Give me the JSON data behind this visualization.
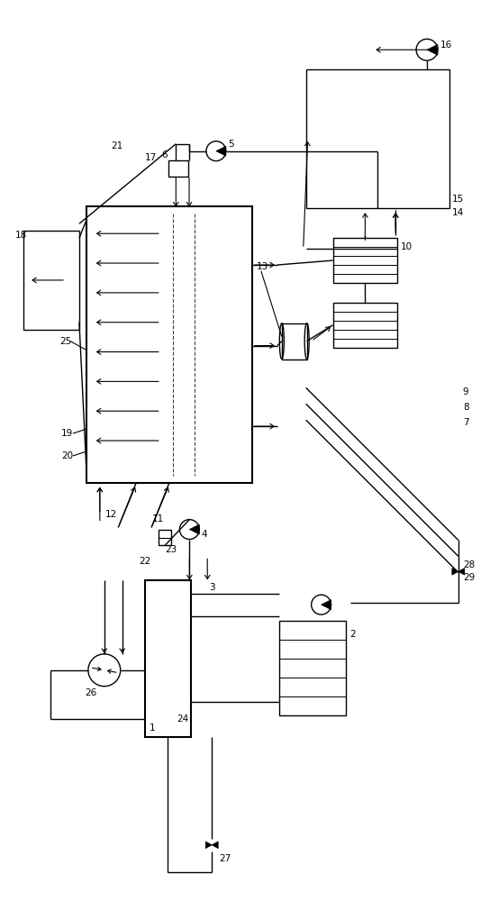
{
  "bg_color": "#ffffff",
  "line_color": "#000000",
  "fig_width": 5.54,
  "fig_height": 10.0
}
